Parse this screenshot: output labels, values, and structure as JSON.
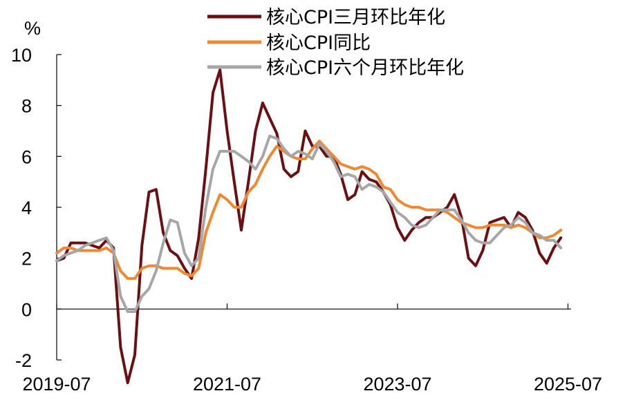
{
  "chart_data": {
    "type": "line",
    "unit_label": "%",
    "xlabel": "",
    "ylabel": "",
    "x_start": "2019-07",
    "x_end": "2025-07",
    "x_ticks": [
      "2019-07",
      "2021-07",
      "2023-07",
      "2025-07"
    ],
    "ylim": [
      -2,
      10
    ],
    "y_ticks": [
      "10",
      "8",
      "6",
      "4",
      "2",
      "0",
      "-2"
    ],
    "grid": false,
    "legend_position": "top-right",
    "series": [
      {
        "name": "核心CPI三月环比年化",
        "color": "#6b0f12",
        "values": [
          1.9,
          2.0,
          2.6,
          2.6,
          2.6,
          2.5,
          2.4,
          2.7,
          2.4,
          -1.5,
          -2.9,
          -1.8,
          2.5,
          4.6,
          4.7,
          3.0,
          2.3,
          2.1,
          1.6,
          1.2,
          2.8,
          5.5,
          8.5,
          9.4,
          7.0,
          5.0,
          3.1,
          5.0,
          7.0,
          8.1,
          7.5,
          6.9,
          5.5,
          5.2,
          5.4,
          7.0,
          6.4,
          6.4,
          6.0,
          6.0,
          5.3,
          4.3,
          4.5,
          5.4,
          5.1,
          5.0,
          4.6,
          4.1,
          3.2,
          2.7,
          3.1,
          3.4,
          3.6,
          3.6,
          3.8,
          4.0,
          4.5,
          3.6,
          2.0,
          1.7,
          2.3,
          3.4,
          3.5,
          3.6,
          3.2,
          3.8,
          3.6,
          3.1,
          2.2,
          1.8,
          2.4,
          2.8
        ]
      },
      {
        "name": "核心CPI同比",
        "color": "#f08732",
        "values": [
          2.2,
          2.4,
          2.4,
          2.3,
          2.3,
          2.3,
          2.3,
          2.4,
          2.2,
          1.5,
          1.2,
          1.2,
          1.6,
          1.7,
          1.7,
          1.6,
          1.6,
          1.6,
          1.4,
          1.3,
          1.6,
          3.0,
          3.8,
          4.5,
          4.3,
          4.0,
          4.0,
          4.6,
          4.9,
          5.5,
          6.0,
          6.4,
          6.2,
          6.0,
          5.9,
          5.9,
          6.3,
          6.6,
          6.3,
          6.0,
          5.7,
          5.6,
          5.5,
          5.6,
          5.5,
          5.3,
          4.8,
          4.7,
          4.3,
          4.1,
          4.0,
          4.0,
          3.9,
          3.9,
          3.9,
          3.8,
          3.6,
          3.4,
          3.3,
          3.2,
          3.2,
          3.3,
          3.3,
          3.3,
          3.2,
          3.3,
          3.2,
          3.0,
          2.8,
          2.8,
          2.9,
          3.1
        ]
      },
      {
        "name": "核心CPI六个月环比年化",
        "color": "#a6a6a6",
        "values": [
          1.9,
          2.1,
          2.2,
          2.3,
          2.5,
          2.6,
          2.7,
          2.8,
          2.3,
          0.5,
          -0.1,
          -0.1,
          0.5,
          0.8,
          1.5,
          2.6,
          3.5,
          3.4,
          2.2,
          1.7,
          2.0,
          4.0,
          5.5,
          6.2,
          6.2,
          6.2,
          6.0,
          5.8,
          5.5,
          6.0,
          6.8,
          6.7,
          6.3,
          6.0,
          6.2,
          6.1,
          5.9,
          6.5,
          6.2,
          5.8,
          5.2,
          5.3,
          5.2,
          4.7,
          4.9,
          4.8,
          4.6,
          4.2,
          3.8,
          3.6,
          3.3,
          3.2,
          3.3,
          3.6,
          3.9,
          3.9,
          3.9,
          3.5,
          3.0,
          2.7,
          2.6,
          2.6,
          2.9,
          3.2,
          3.3,
          3.6,
          3.4,
          3.0,
          2.9,
          2.7,
          2.7,
          2.4
        ]
      }
    ]
  }
}
